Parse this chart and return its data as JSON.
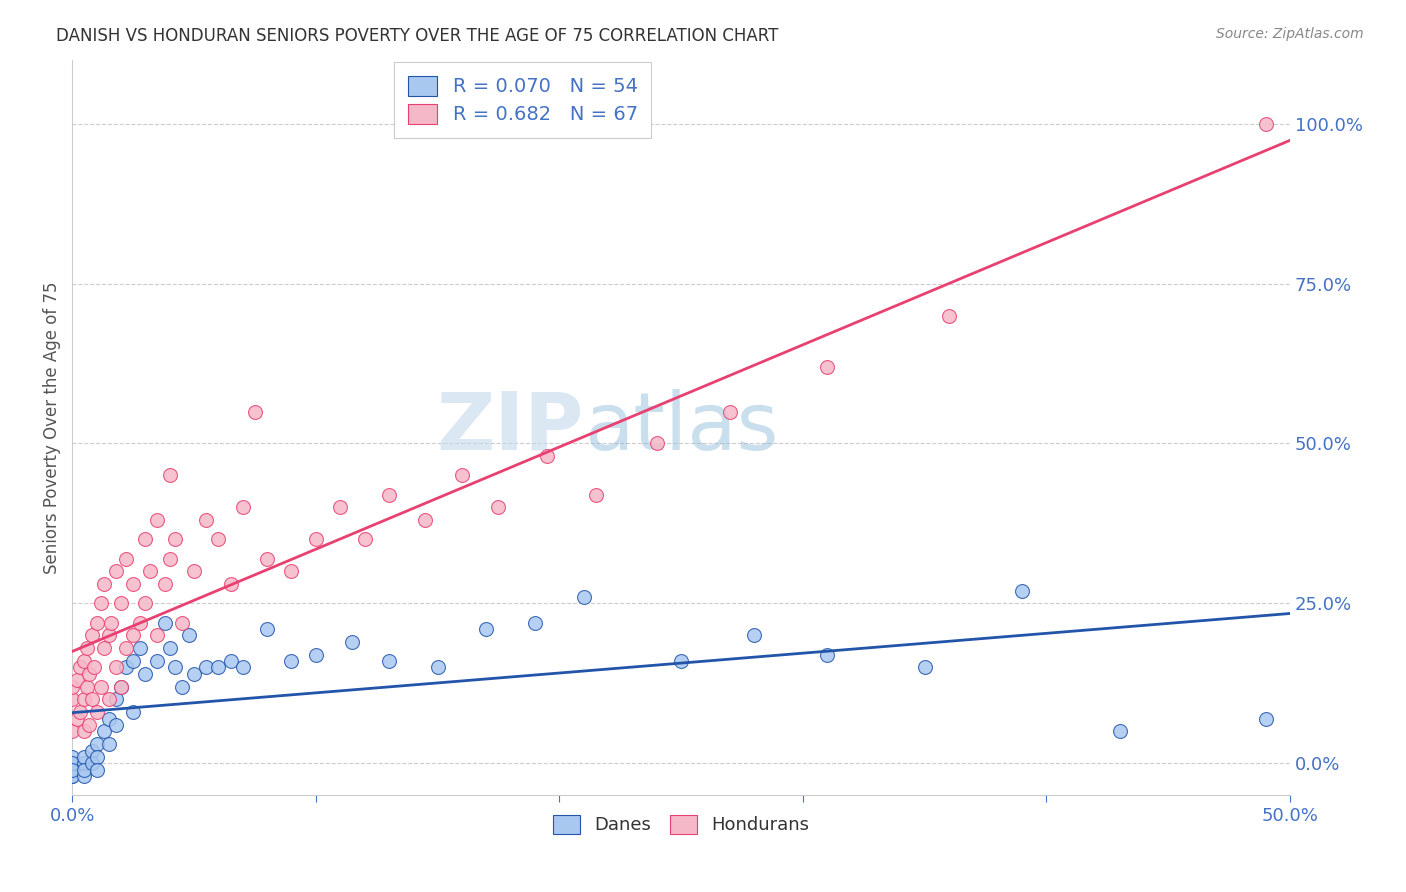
{
  "title": "DANISH VS HONDURAN SENIORS POVERTY OVER THE AGE OF 75 CORRELATION CHART",
  "source": "Source: ZipAtlas.com",
  "ylabel": "Seniors Poverty Over the Age of 75",
  "xlim": [
    0.0,
    0.5
  ],
  "ylim": [
    -0.05,
    1.1
  ],
  "right_yticks": [
    0.0,
    0.25,
    0.5,
    0.75,
    1.0
  ],
  "right_yticklabels": [
    "0.0%",
    "25.0%",
    "50.0%",
    "75.0%",
    "100.0%"
  ],
  "xticks": [
    0.0,
    0.1,
    0.2,
    0.3,
    0.4,
    0.5
  ],
  "xticklabels": [
    "0.0%",
    "",
    "",
    "",
    "",
    "50.0%"
  ],
  "danes_color": "#A8C8F0",
  "hondurans_color": "#F5B8C8",
  "danes_line_color": "#2255AA",
  "hondurans_line_color": "#E84070",
  "danes_R": 0.07,
  "danes_N": 54,
  "hondurans_R": 0.682,
  "hondurans_N": 67,
  "danes_x": [
    0.0,
    0.0,
    0.0,
    0.0,
    0.0,
    0.0,
    0.0,
    0.005,
    0.005,
    0.005,
    0.005,
    0.008,
    0.008,
    0.01,
    0.01,
    0.01,
    0.013,
    0.015,
    0.015,
    0.018,
    0.018,
    0.02,
    0.022,
    0.025,
    0.025,
    0.028,
    0.03,
    0.035,
    0.038,
    0.04,
    0.042,
    0.045,
    0.048,
    0.05,
    0.055,
    0.06,
    0.065,
    0.07,
    0.08,
    0.09,
    0.1,
    0.115,
    0.13,
    0.15,
    0.17,
    0.19,
    0.21,
    0.25,
    0.28,
    0.31,
    0.35,
    0.39,
    0.43,
    0.49
  ],
  "danes_y": [
    -0.02,
    -0.01,
    0.0,
    0.01,
    -0.02,
    0.0,
    -0.01,
    0.0,
    -0.02,
    0.01,
    -0.01,
    0.02,
    0.0,
    0.03,
    0.01,
    -0.01,
    0.05,
    0.07,
    0.03,
    0.1,
    0.06,
    0.12,
    0.15,
    0.16,
    0.08,
    0.18,
    0.14,
    0.16,
    0.22,
    0.18,
    0.15,
    0.12,
    0.2,
    0.14,
    0.15,
    0.15,
    0.16,
    0.15,
    0.21,
    0.16,
    0.17,
    0.19,
    0.16,
    0.15,
    0.21,
    0.22,
    0.26,
    0.16,
    0.2,
    0.17,
    0.15,
    0.27,
    0.05,
    0.07
  ],
  "hondurans_x": [
    0.0,
    0.0,
    0.0,
    0.002,
    0.002,
    0.003,
    0.003,
    0.005,
    0.005,
    0.005,
    0.006,
    0.006,
    0.007,
    0.007,
    0.008,
    0.008,
    0.009,
    0.01,
    0.01,
    0.012,
    0.012,
    0.013,
    0.013,
    0.015,
    0.015,
    0.016,
    0.018,
    0.018,
    0.02,
    0.02,
    0.022,
    0.022,
    0.025,
    0.025,
    0.028,
    0.03,
    0.03,
    0.032,
    0.035,
    0.035,
    0.038,
    0.04,
    0.04,
    0.042,
    0.045,
    0.05,
    0.055,
    0.06,
    0.065,
    0.07,
    0.075,
    0.08,
    0.09,
    0.1,
    0.11,
    0.12,
    0.13,
    0.145,
    0.16,
    0.175,
    0.195,
    0.215,
    0.24,
    0.27,
    0.31,
    0.36,
    0.49
  ],
  "hondurans_y": [
    0.05,
    0.1,
    0.12,
    0.07,
    0.13,
    0.08,
    0.15,
    0.05,
    0.1,
    0.16,
    0.12,
    0.18,
    0.06,
    0.14,
    0.1,
    0.2,
    0.15,
    0.08,
    0.22,
    0.12,
    0.25,
    0.18,
    0.28,
    0.1,
    0.2,
    0.22,
    0.15,
    0.3,
    0.12,
    0.25,
    0.18,
    0.32,
    0.2,
    0.28,
    0.22,
    0.35,
    0.25,
    0.3,
    0.2,
    0.38,
    0.28,
    0.32,
    0.45,
    0.35,
    0.22,
    0.3,
    0.38,
    0.35,
    0.28,
    0.4,
    0.55,
    0.32,
    0.3,
    0.35,
    0.4,
    0.35,
    0.42,
    0.38,
    0.45,
    0.4,
    0.48,
    0.42,
    0.5,
    0.55,
    0.62,
    0.7,
    1.0
  ],
  "watermark_zip": "ZIP",
  "watermark_atlas": "atlas",
  "background_color": "#ffffff",
  "grid_color": "#cccccc",
  "title_color": "#333333",
  "tick_color": "#4472C4"
}
